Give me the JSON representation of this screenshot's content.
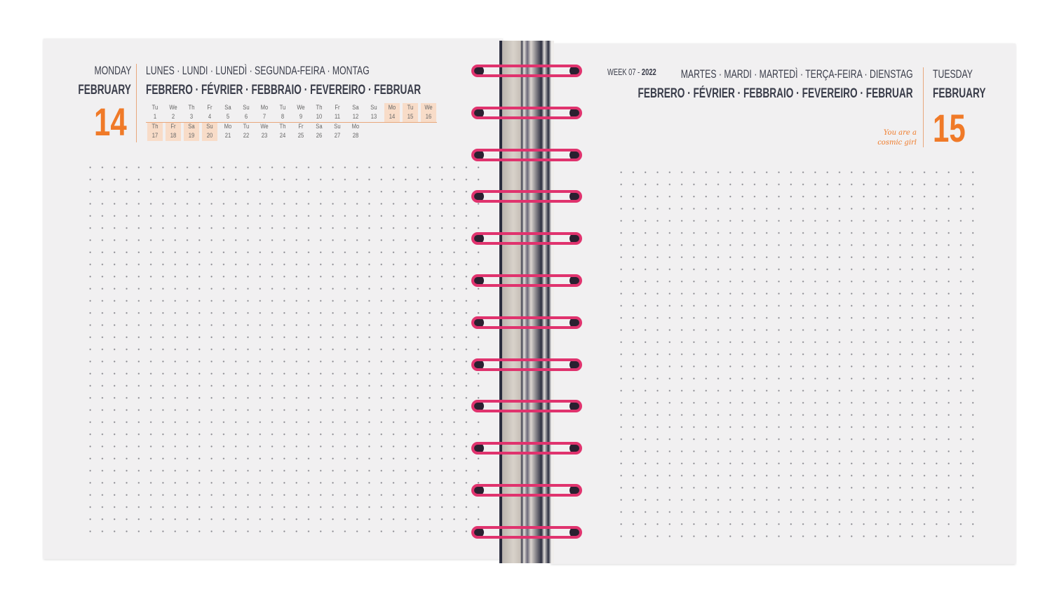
{
  "left_page": {
    "day_en": "MONDAY",
    "month_en": "FEBRUARY",
    "day_number": "14",
    "day_translations": "LUNES · LUNDI · LUNEDÌ · SEGUNDA-FEIRA · MONTAG",
    "month_translations": "FEBRERO · FÉVRIER · FEBBRAIO · FEVEREIRO · FEBRUAR",
    "mini_calendar": [
      [
        {
          "d": "Tu",
          "n": "1"
        },
        {
          "d": "We",
          "n": "2"
        },
        {
          "d": "Th",
          "n": "3"
        },
        {
          "d": "Fr",
          "n": "4"
        },
        {
          "d": "Sa",
          "n": "5"
        },
        {
          "d": "Su",
          "n": "6"
        },
        {
          "d": "Mo",
          "n": "7"
        },
        {
          "d": "Tu",
          "n": "8"
        },
        {
          "d": "We",
          "n": "9"
        },
        {
          "d": "Th",
          "n": "10"
        },
        {
          "d": "Fr",
          "n": "11"
        },
        {
          "d": "Sa",
          "n": "12"
        },
        {
          "d": "Su",
          "n": "13"
        },
        {
          "d": "Mo",
          "n": "14",
          "hl": true
        },
        {
          "d": "Tu",
          "n": "15",
          "hl": true
        },
        {
          "d": "We",
          "n": "16",
          "hl": true
        }
      ],
      [
        {
          "d": "Th",
          "n": "17",
          "hl": true
        },
        {
          "d": "Fr",
          "n": "18",
          "hl": true
        },
        {
          "d": "Sa",
          "n": "19",
          "hl": true
        },
        {
          "d": "Su",
          "n": "20",
          "hl": true
        },
        {
          "d": "Mo",
          "n": "21"
        },
        {
          "d": "Tu",
          "n": "22"
        },
        {
          "d": "We",
          "n": "23"
        },
        {
          "d": "Th",
          "n": "24"
        },
        {
          "d": "Fr",
          "n": "25"
        },
        {
          "d": "Sa",
          "n": "26"
        },
        {
          "d": "Su",
          "n": "27"
        },
        {
          "d": "Mo",
          "n": "28"
        }
      ]
    ]
  },
  "right_page": {
    "week_label": "WEEK 07 -",
    "year": "2022",
    "day_translations": "MARTES · MARDI · MARTEDÌ · TERÇA-FEIRA · DIENSTAG",
    "month_translations": "FEBRERO · FÉVRIER · FEBBRAIO · FEVEREIRO · FEBRUAR",
    "day_en": "TUESDAY",
    "month_en": "FEBRUARY",
    "day_number": "15",
    "quote_line1": "You are a",
    "quote_line2": "cosmic girl"
  },
  "colors": {
    "accent": "#f07a28",
    "highlight": "#f8dcc8",
    "spiral": "#e0336e",
    "text": "#3a3d4a"
  }
}
